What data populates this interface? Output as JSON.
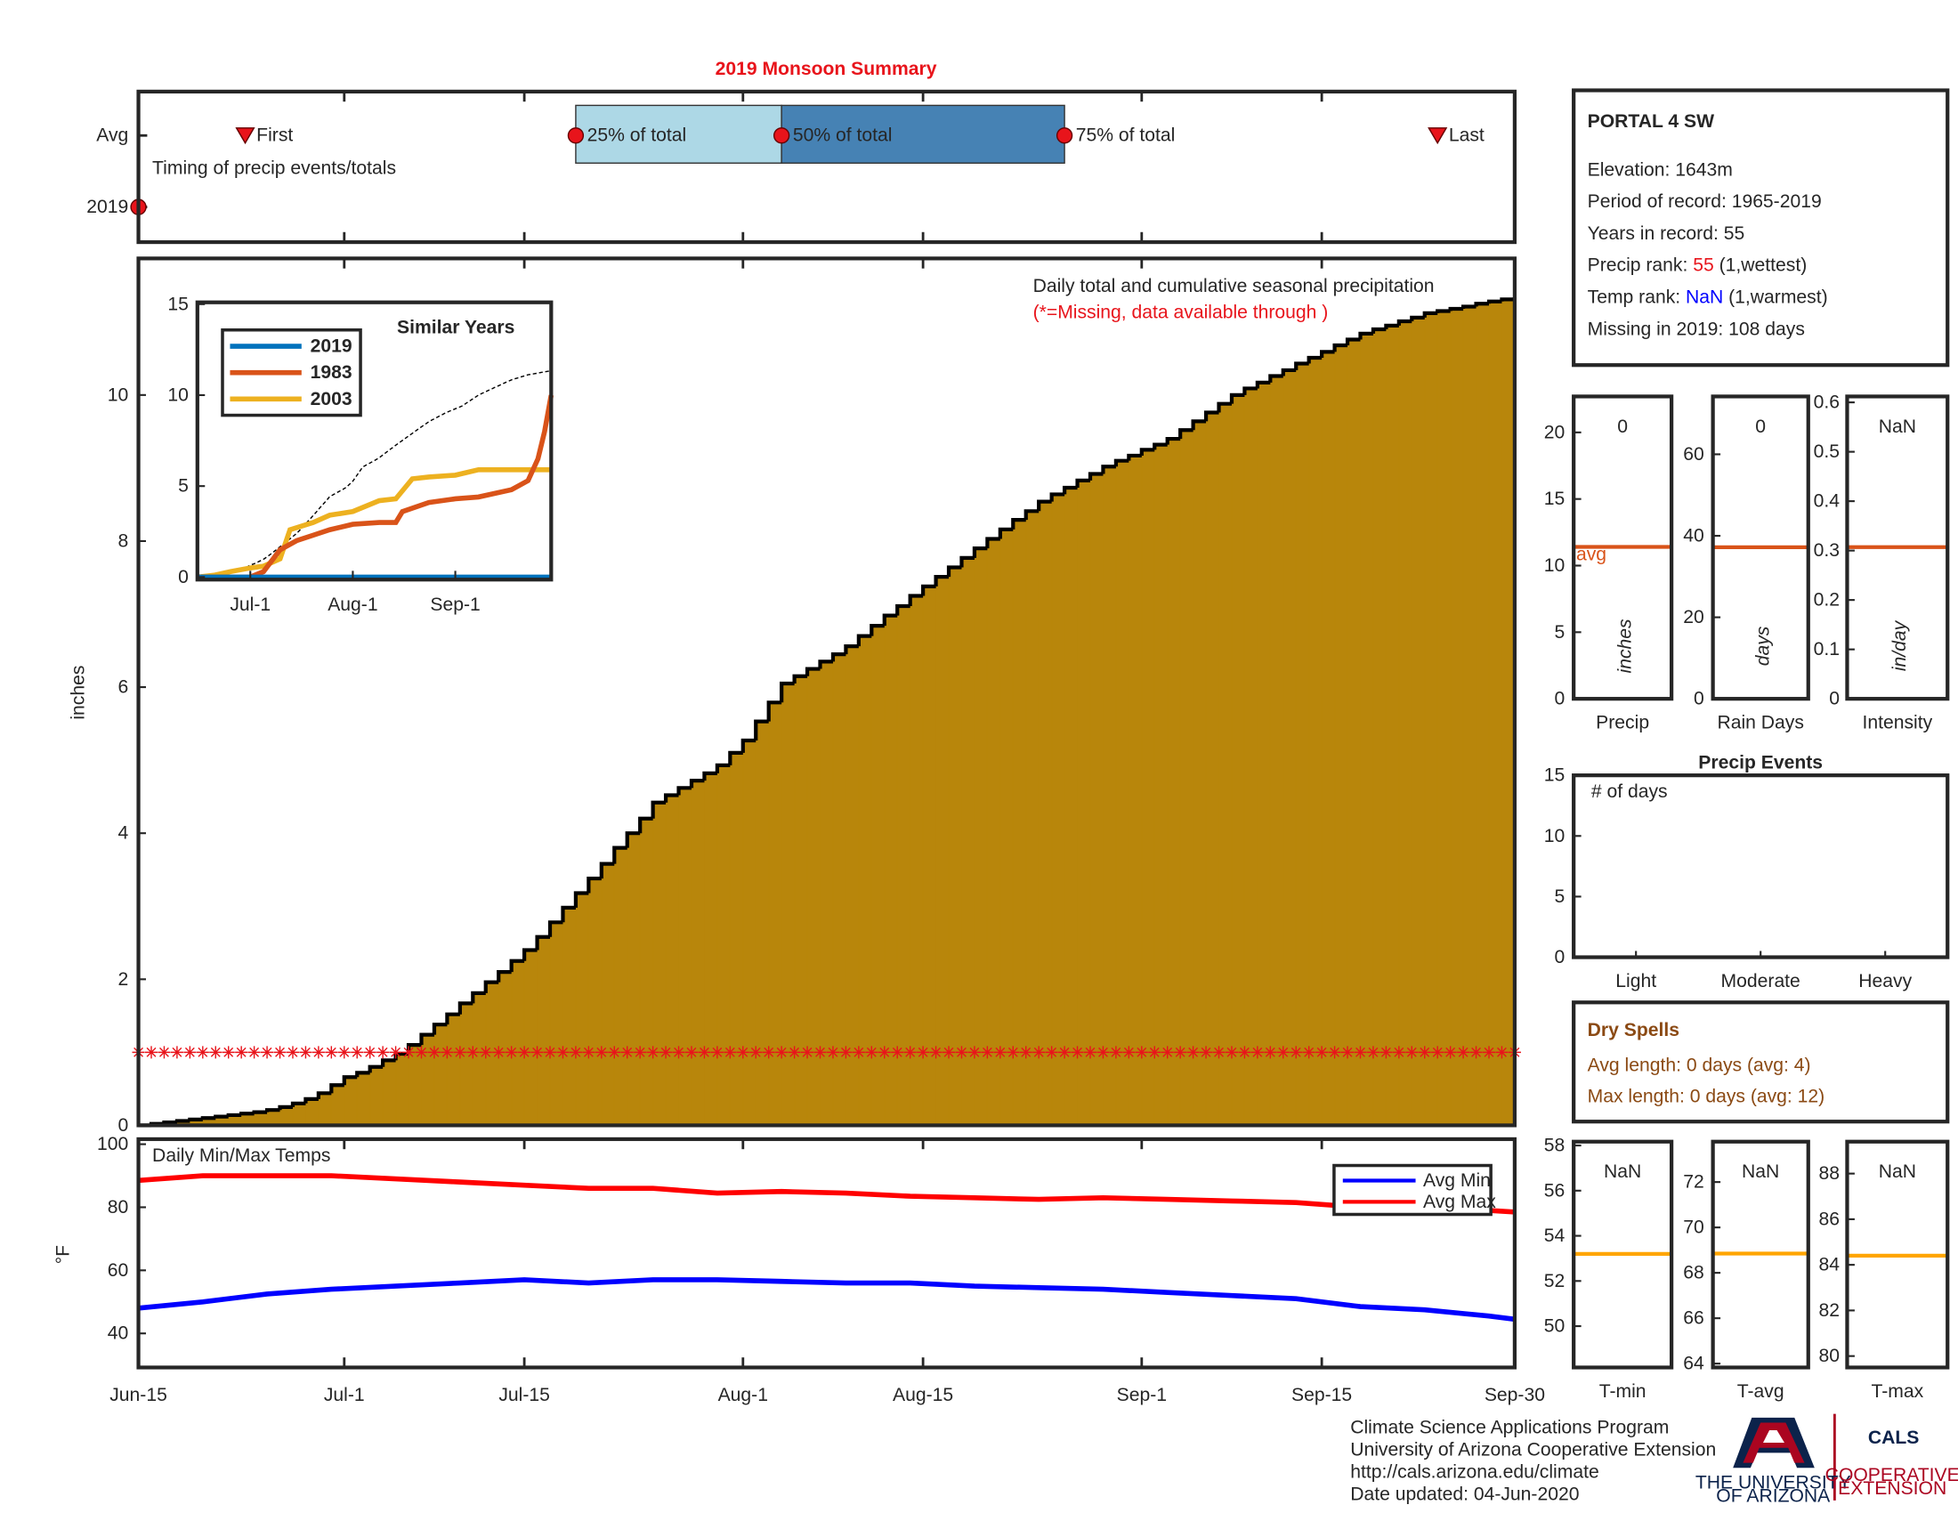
{
  "title": "2019 Monsoon Summary",
  "chart_data": [
    {
      "type": "timing",
      "annotation": "Timing of precip events/totals",
      "xlim": [
        0,
        107
      ],
      "box_colors": [
        "#add8e6",
        "#4682b4"
      ],
      "marker_color": "#e8141b",
      "series": [
        {
          "name": "Avg",
          "values": [
            8.3,
            34,
            50,
            72,
            101
          ],
          "labels": [
            "First",
            "25% of total",
            "50% of total",
            "75% of total",
            "Last"
          ]
        },
        {
          "name": "2019",
          "values": [
            0
          ]
        }
      ]
    },
    {
      "type": "step-area",
      "annotations": [
        "Daily total and cumulative seasonal precipitation",
        "(*=Missing, data available through )"
      ],
      "y_label": "inches",
      "color": "#b8860b",
      "missing_level": 1,
      "missing_color": "#e8141b",
      "xlim": [
        0,
        107
      ],
      "ylim": [
        0,
        11.87
      ],
      "yticks": [
        0,
        2,
        4,
        6,
        8,
        10
      ],
      "x": [
        0,
        1,
        2,
        3,
        4,
        5,
        6,
        7,
        8,
        9,
        10,
        11,
        12,
        13,
        14,
        15,
        16,
        17,
        18,
        19,
        20,
        21,
        22,
        23,
        24,
        25,
        26,
        27,
        28,
        29,
        30,
        31,
        32,
        33,
        34,
        35,
        36,
        37,
        38,
        39,
        40,
        41,
        42,
        43,
        44,
        45,
        46,
        47,
        48,
        49,
        50,
        51,
        52,
        53,
        54,
        55,
        56,
        57,
        58,
        59,
        60,
        61,
        62,
        63,
        64,
        65,
        66,
        67,
        68,
        69,
        70,
        71,
        72,
        73,
        74,
        75,
        76,
        77,
        78,
        79,
        80,
        81,
        82,
        83,
        84,
        85,
        86,
        87,
        88,
        89,
        90,
        91,
        92,
        93,
        94,
        95,
        96,
        97,
        98,
        99,
        100,
        101,
        102,
        103,
        104,
        105,
        106,
        107
      ],
      "values": [
        0.0,
        0.02,
        0.04,
        0.06,
        0.08,
        0.1,
        0.12,
        0.14,
        0.16,
        0.18,
        0.21,
        0.25,
        0.3,
        0.36,
        0.44,
        0.55,
        0.66,
        0.72,
        0.8,
        0.89,
        0.98,
        1.1,
        1.24,
        1.38,
        1.52,
        1.67,
        1.81,
        1.96,
        2.1,
        2.25,
        2.4,
        2.58,
        2.78,
        2.98,
        3.18,
        3.38,
        3.58,
        3.8,
        4.0,
        4.2,
        4.42,
        4.52,
        4.62,
        4.72,
        4.82,
        4.93,
        5.1,
        5.27,
        5.53,
        5.79,
        6.05,
        6.15,
        6.25,
        6.35,
        6.45,
        6.56,
        6.7,
        6.84,
        6.98,
        7.11,
        7.25,
        7.38,
        7.51,
        7.64,
        7.77,
        7.9,
        8.03,
        8.16,
        8.29,
        8.41,
        8.54,
        8.64,
        8.73,
        8.83,
        8.92,
        9.02,
        9.1,
        9.17,
        9.25,
        9.32,
        9.4,
        9.52,
        9.64,
        9.76,
        9.88,
        10.0,
        10.09,
        10.17,
        10.26,
        10.34,
        10.43,
        10.51,
        10.59,
        10.68,
        10.76,
        10.84,
        10.9,
        10.95,
        11.01,
        11.06,
        11.12,
        11.15,
        11.18,
        11.21,
        11.25,
        11.28,
        11.31,
        11.34
      ]
    },
    {
      "type": "line",
      "title": "Similar Years",
      "xlim": [
        0,
        107
      ],
      "ylim": [
        -0.14,
        15.1
      ],
      "yticks": [
        0,
        5,
        10,
        15
      ],
      "xticks": [
        {
          "value": 16,
          "label": "Jul-1"
        },
        {
          "value": 47,
          "label": "Aug-1"
        },
        {
          "value": 78,
          "label": "Sep-1"
        }
      ],
      "series": [
        {
          "name": "2019",
          "color": "#0072bd",
          "x": [
            0,
            107
          ],
          "values": [
            0,
            0
          ]
        },
        {
          "name": "1983",
          "color": "#d95319",
          "x": [
            0,
            10,
            16,
            20,
            25,
            30,
            35,
            40,
            47,
            55,
            60,
            62,
            70,
            78,
            85,
            95,
            100,
            103,
            105,
            107
          ],
          "values": [
            0,
            0,
            0,
            0.3,
            1.5,
            2.0,
            2.3,
            2.6,
            2.9,
            3.0,
            3.0,
            3.6,
            4.1,
            4.3,
            4.4,
            4.8,
            5.3,
            6.5,
            8.0,
            10.0
          ]
        },
        {
          "name": "2003",
          "color": "#edb120",
          "x": [
            0,
            5,
            10,
            16,
            20,
            25,
            28,
            35,
            40,
            47,
            55,
            60,
            65,
            70,
            78,
            85,
            95,
            107
          ],
          "values": [
            0,
            0.1,
            0.3,
            0.5,
            0.6,
            1.0,
            2.6,
            3.0,
            3.4,
            3.6,
            4.2,
            4.3,
            5.4,
            5.5,
            5.6,
            5.9,
            5.9,
            5.9
          ]
        }
      ]
    },
    {
      "type": "line",
      "title": "Daily Min/Max Temps",
      "y_label": "°F",
      "xlim": [
        0,
        107
      ],
      "ylim": [
        29.2,
        101.6
      ],
      "yticks": [
        40,
        60,
        80,
        100
      ],
      "xticks": [
        {
          "value": 0,
          "label": "Jun-15"
        },
        {
          "value": 16,
          "label": "Jul-1"
        },
        {
          "value": 30,
          "label": "Jul-15"
        },
        {
          "value": 47,
          "label": "Aug-1"
        },
        {
          "value": 61,
          "label": "Aug-15"
        },
        {
          "value": 78,
          "label": "Sep-1"
        },
        {
          "value": 92,
          "label": "Sep-15"
        },
        {
          "value": 107,
          "label": "Sep-30"
        }
      ],
      "series": [
        {
          "name": "Avg Min",
          "color": "#0000ff",
          "x": [
            0,
            5,
            10,
            15,
            20,
            25,
            30,
            35,
            40,
            45,
            50,
            55,
            60,
            65,
            70,
            75,
            80,
            85,
            90,
            95,
            100,
            105,
            107
          ],
          "values": [
            48,
            50,
            52.5,
            54,
            55,
            56,
            57,
            56,
            57,
            57,
            56.5,
            56,
            56,
            55,
            54.5,
            54,
            53,
            52,
            51,
            48.5,
            47.5,
            45.5,
            44.5
          ]
        },
        {
          "name": "Avg Max",
          "color": "#ff0000",
          "x": [
            0,
            5,
            10,
            15,
            20,
            25,
            30,
            35,
            40,
            45,
            50,
            55,
            60,
            65,
            70,
            75,
            80,
            85,
            90,
            95,
            100,
            105,
            107
          ],
          "values": [
            88.5,
            90,
            90,
            90,
            89,
            88,
            87,
            86,
            86,
            84.5,
            85,
            84.5,
            83.5,
            83,
            82.5,
            83,
            82.5,
            82,
            81.5,
            80,
            80.5,
            79,
            78.5
          ]
        }
      ]
    },
    {
      "type": "bar",
      "categories": [
        "Precip"
      ],
      "values": [
        0
      ],
      "value_labels": [
        "0"
      ],
      "y_label": "inches",
      "avg": 11.4,
      "avg_label": "avg",
      "avg_color": "#d95319",
      "color": "#0072bd",
      "ylim": [
        0,
        22.7
      ],
      "yticks": [
        0,
        5,
        10,
        15,
        20
      ]
    },
    {
      "type": "bar",
      "categories": [
        "Rain Days"
      ],
      "values": [
        0
      ],
      "value_labels": [
        "0"
      ],
      "y_label": "days",
      "avg": 37.2,
      "avg_color": "#d95319",
      "color": "#0072bd",
      "ylim": [
        0,
        74.2
      ],
      "yticks": [
        0,
        20,
        40,
        60
      ]
    },
    {
      "type": "bar",
      "categories": [
        "Intensity"
      ],
      "values": [
        null
      ],
      "value_labels": [
        "NaN"
      ],
      "y_label": "in/day",
      "avg": 0.307,
      "avg_color": "#d95319",
      "color": "#0072bd",
      "ylim": [
        0,
        0.612
      ],
      "yticks": [
        0,
        0.1,
        0.2,
        0.3,
        0.4,
        0.5,
        0.6
      ]
    },
    {
      "type": "bar",
      "title": "Precip Events",
      "annotation": "# of days",
      "categories": [
        "Light",
        "Moderate",
        "Heavy"
      ],
      "values": [
        0,
        0,
        0
      ],
      "color": "#0072bd",
      "ylim": [
        0,
        15
      ],
      "yticks": [
        0,
        5,
        10,
        15
      ]
    },
    {
      "type": "bar",
      "categories": [
        "T-min"
      ],
      "values": [
        null
      ],
      "value_labels": [
        "NaN"
      ],
      "avg": 53.2,
      "avg_color": "#ffa500",
      "color": "#0072bd",
      "ylim": [
        48.17,
        58.17
      ],
      "yticks": [
        50,
        52,
        54,
        56,
        58
      ]
    },
    {
      "type": "bar",
      "categories": [
        "T-avg"
      ],
      "values": [
        null
      ],
      "value_labels": [
        "NaN"
      ],
      "avg": 68.85,
      "avg_color": "#ffa500",
      "color": "#0072bd",
      "ylim": [
        63.83,
        73.78
      ],
      "yticks": [
        64,
        66,
        68,
        70,
        72
      ]
    },
    {
      "type": "bar",
      "categories": [
        "T-max"
      ],
      "values": [
        null
      ],
      "value_labels": [
        "NaN"
      ],
      "avg": 84.4,
      "avg_color": "#ffa500",
      "color": "#0072bd",
      "ylim": [
        79.5,
        89.4
      ],
      "yticks": [
        80,
        82,
        84,
        86,
        88
      ]
    }
  ],
  "station": {
    "name": "PORTAL 4 SW",
    "lines": [
      [
        {
          "text": "Elevation: 1643m"
        }
      ],
      [
        {
          "text": "Period of record: 1965-2019"
        }
      ],
      [
        {
          "text": "Years in record: 55"
        }
      ],
      [
        {
          "text": "Precip rank: "
        },
        {
          "text": "55",
          "color": "#e8141b"
        },
        {
          "text": " (1,wettest)"
        }
      ],
      [
        {
          "text": "Temp rank: "
        },
        {
          "text": "NaN",
          "color": "#0000ff"
        },
        {
          "text": " (1,warmest)"
        }
      ],
      [
        {
          "text": "Missing in 2019: 108 days"
        }
      ]
    ]
  },
  "dry_spells": {
    "title": "Dry Spells",
    "color": "#8b4a14",
    "lines": [
      "Avg length: 0 days (avg: 4)",
      "Max length: 0 days (avg: 12)"
    ]
  },
  "footer": {
    "lines": [
      "Climate Science Applications Program",
      "University of Arizona Cooperative Extension",
      "http://cals.arizona.edu/climate",
      " Date updated: 04-Jun-2020"
    ]
  },
  "logo": {
    "university": [
      "THE UNIVERSITY",
      "OF ARIZONA"
    ],
    "cals": "CALS",
    "extension": [
      "COOPERATIVE",
      "EXTENSION"
    ]
  }
}
